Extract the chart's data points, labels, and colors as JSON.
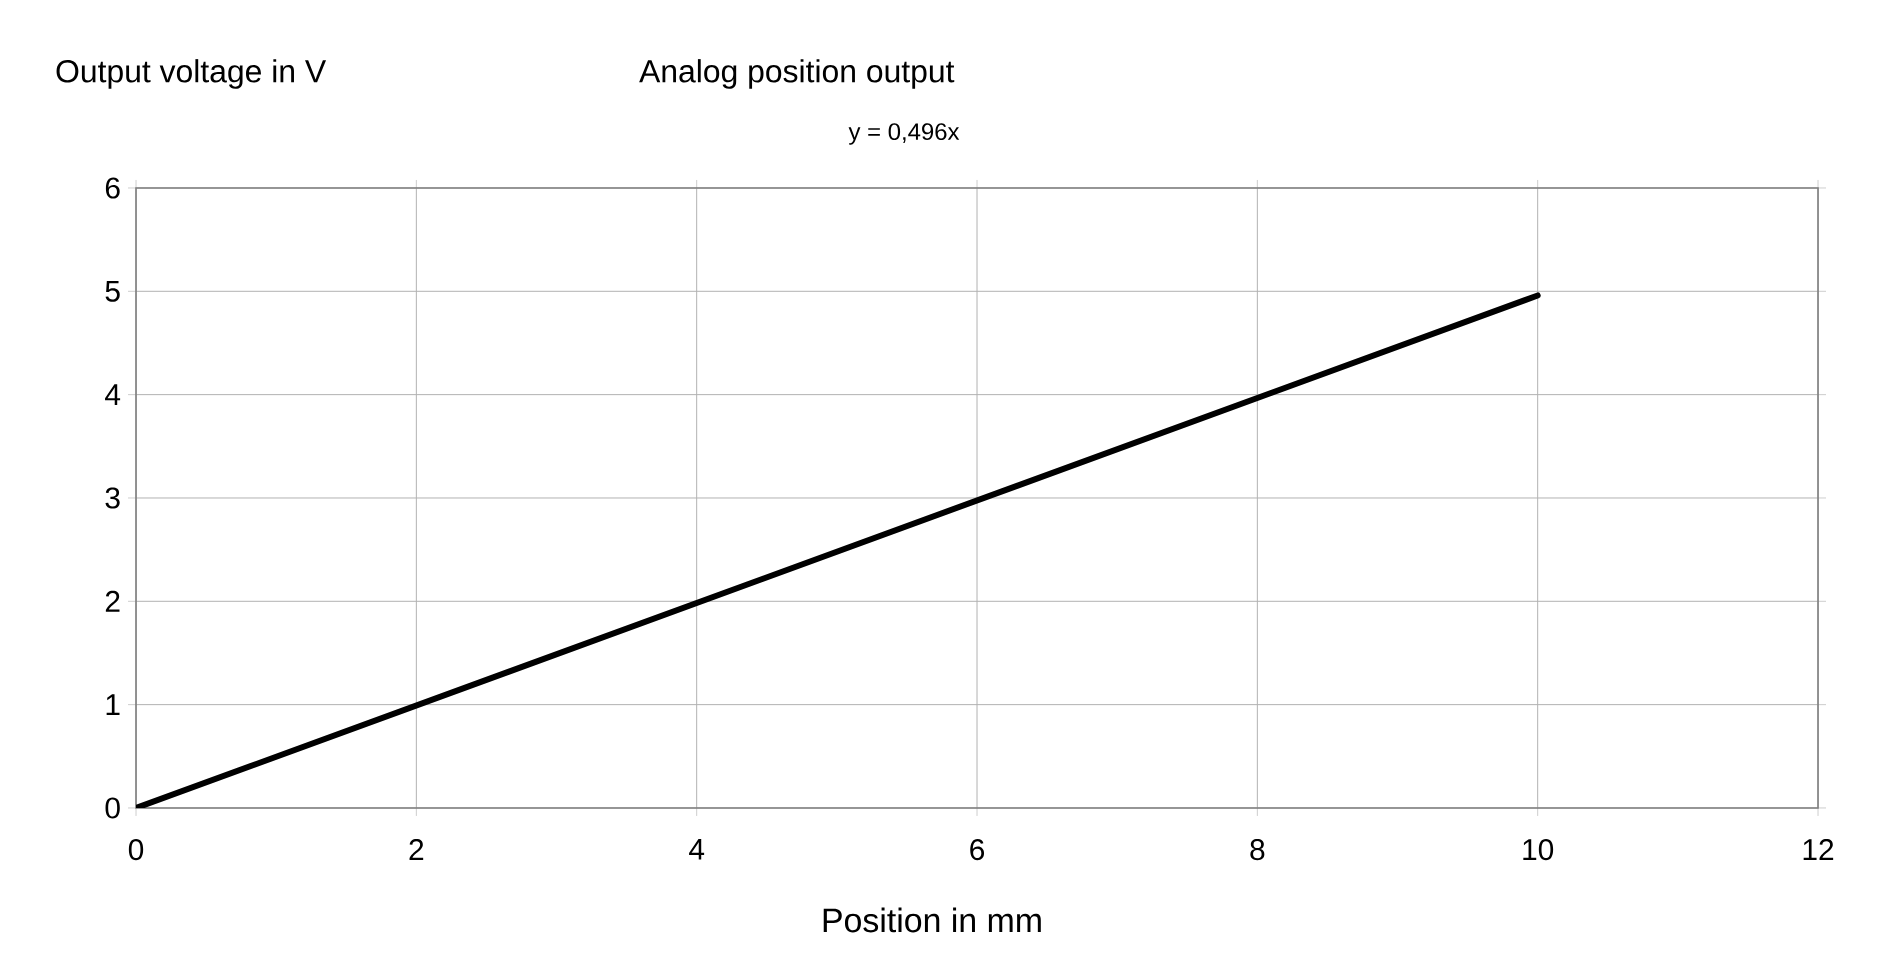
{
  "chart_data": {
    "type": "line",
    "title": "Analog position output",
    "xlabel": "Position in mm",
    "ylabel": "Output voltage in V",
    "annotations": [
      "y = 0,496x"
    ],
    "x": [
      0,
      10
    ],
    "series": [
      {
        "color": "#000000",
        "values": [
          0,
          4.96
        ]
      }
    ],
    "xlim": [
      0,
      12
    ],
    "ylim": [
      0,
      6
    ],
    "xticks": [
      0,
      2,
      4,
      6,
      8,
      10,
      12
    ],
    "yticks": [
      0,
      1,
      2,
      3,
      4,
      5,
      6
    ],
    "grid": true,
    "marker": "none",
    "line_style": "solid"
  }
}
